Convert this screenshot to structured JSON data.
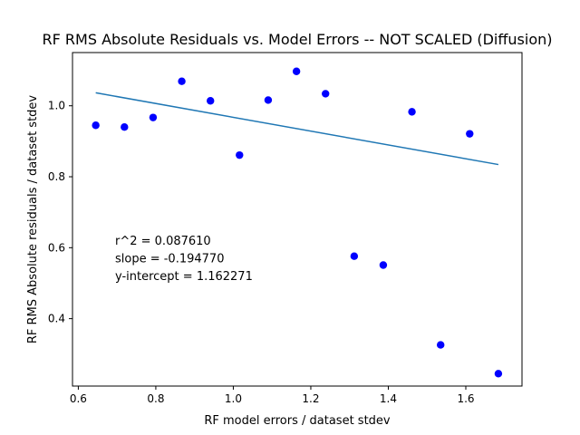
{
  "chart_data": {
    "type": "scatter",
    "title": "RF RMS Absolute Residuals vs. Model Errors -- NOT SCALED (Diffusion)",
    "xlabel": "RF model errors / dataset stdev",
    "ylabel": "RF RMS Absolute residuals / dataset stdev",
    "xlim": [
      0.585,
      1.745
    ],
    "ylim": [
      0.21,
      1.15
    ],
    "xticks": [
      0.6,
      0.8,
      1.0,
      1.2,
      1.4,
      1.6
    ],
    "xtick_labels": [
      "0.6",
      "0.8",
      "1.0",
      "1.2",
      "1.4",
      "1.6"
    ],
    "yticks": [
      0.4,
      0.6,
      0.8,
      1.0
    ],
    "ytick_labels": [
      "0.4",
      "0.6",
      "0.8",
      "1.0"
    ],
    "grid": false,
    "point_color": "#0000ff",
    "line_color": "#1f77b4",
    "points": [
      {
        "x": 0.645,
        "y": 0.945
      },
      {
        "x": 0.719,
        "y": 0.94
      },
      {
        "x": 0.793,
        "y": 0.967
      },
      {
        "x": 0.867,
        "y": 1.069
      },
      {
        "x": 0.941,
        "y": 1.014
      },
      {
        "x": 1.016,
        "y": 0.861
      },
      {
        "x": 1.09,
        "y": 1.016
      },
      {
        "x": 1.163,
        "y": 1.097
      },
      {
        "x": 1.238,
        "y": 1.034
      },
      {
        "x": 1.312,
        "y": 0.576
      },
      {
        "x": 1.387,
        "y": 0.551
      },
      {
        "x": 1.461,
        "y": 0.983
      },
      {
        "x": 1.535,
        "y": 0.326
      },
      {
        "x": 1.61,
        "y": 0.921
      },
      {
        "x": 1.684,
        "y": 0.245
      }
    ],
    "fit_line": {
      "x": [
        0.645,
        1.684
      ],
      "y": [
        1.0366,
        0.8344
      ]
    },
    "annotations": [
      "r^2 = 0.087610",
      "slope = -0.194770",
      "y-intercept = 1.162271"
    ]
  }
}
